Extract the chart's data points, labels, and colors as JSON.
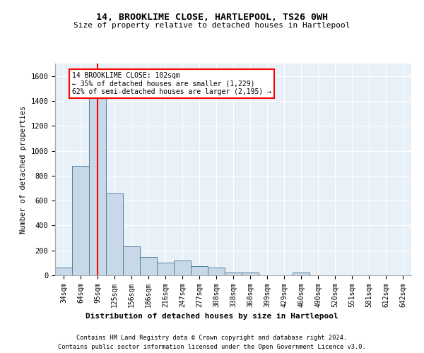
{
  "title": "14, BROOKLIME CLOSE, HARTLEPOOL, TS26 0WH",
  "subtitle": "Size of property relative to detached houses in Hartlepool",
  "xlabel": "Distribution of detached houses by size in Hartlepool",
  "ylabel": "Number of detached properties",
  "footer1": "Contains HM Land Registry data © Crown copyright and database right 2024.",
  "footer2": "Contains public sector information licensed under the Open Government Licence v3.0.",
  "bin_labels": [
    "34sqm",
    "64sqm",
    "95sqm",
    "125sqm",
    "156sqm",
    "186sqm",
    "216sqm",
    "247sqm",
    "277sqm",
    "308sqm",
    "338sqm",
    "368sqm",
    "399sqm",
    "429sqm",
    "460sqm",
    "490sqm",
    "520sqm",
    "551sqm",
    "581sqm",
    "612sqm",
    "642sqm"
  ],
  "bar_values": [
    60,
    880,
    1540,
    660,
    230,
    150,
    100,
    120,
    75,
    60,
    25,
    20,
    0,
    0,
    20,
    0,
    0,
    0,
    0,
    0,
    0
  ],
  "bar_color": "#c8d8e8",
  "bar_edge_color": "#4f81a0",
  "vline_x": 2,
  "annotation_text": "14 BROOKLIME CLOSE: 102sqm\n← 35% of detached houses are smaller (1,229)\n62% of semi-detached houses are larger (2,195) →",
  "annotation_box_color": "white",
  "annotation_border_color": "red",
  "vline_color": "red",
  "ylim": [
    0,
    1700
  ],
  "yticks": [
    0,
    200,
    400,
    600,
    800,
    1000,
    1200,
    1400,
    1600
  ],
  "axes_bg_color": "#e8f0f8"
}
